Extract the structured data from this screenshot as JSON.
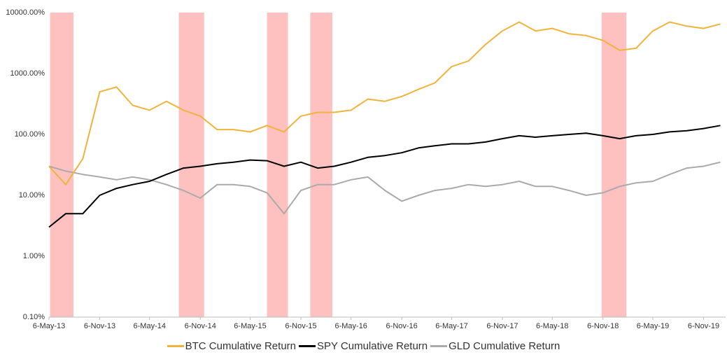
{
  "chart_data": {
    "type": "line",
    "log_scale": true,
    "x": [
      "2013-05-06",
      "2013-07-06",
      "2013-09-06",
      "2013-11-06",
      "2014-01-06",
      "2014-03-06",
      "2014-05-06",
      "2014-07-06",
      "2014-09-06",
      "2014-11-06",
      "2015-01-06",
      "2015-03-06",
      "2015-05-06",
      "2015-07-06",
      "2015-09-06",
      "2015-11-06",
      "2016-01-06",
      "2016-03-06",
      "2016-05-06",
      "2016-07-06",
      "2016-09-06",
      "2016-11-06",
      "2017-01-06",
      "2017-03-06",
      "2017-05-06",
      "2017-07-06",
      "2017-09-06",
      "2017-11-06",
      "2018-01-06",
      "2018-03-06",
      "2018-05-06",
      "2018-07-06",
      "2018-09-06",
      "2018-11-06",
      "2019-01-06",
      "2019-03-06",
      "2019-05-06",
      "2019-07-06",
      "2019-09-06",
      "2019-11-06",
      "2020-01-06"
    ],
    "series": [
      {
        "name": "BTC Cumulative Return",
        "color": "#f0b43c",
        "values": [
          30,
          15,
          40,
          500,
          600,
          300,
          250,
          350,
          250,
          200,
          120,
          120,
          110,
          140,
          110,
          200,
          230,
          230,
          250,
          380,
          350,
          420,
          550,
          700,
          1300,
          1600,
          3000,
          5000,
          7000,
          5000,
          5500,
          4500,
          4200,
          3500,
          2400,
          2600,
          5000,
          7000,
          6000,
          5500,
          6500
        ]
      },
      {
        "name": "SPY Cumulative Return",
        "color": "#000000",
        "values": [
          3,
          5,
          5,
          10,
          13,
          15,
          17,
          22,
          28,
          30,
          33,
          35,
          38,
          37,
          30,
          35,
          28,
          30,
          35,
          42,
          45,
          50,
          60,
          65,
          70,
          70,
          75,
          85,
          95,
          90,
          95,
          100,
          105,
          95,
          85,
          95,
          100,
          110,
          115,
          125,
          140
        ]
      },
      {
        "name": "GLD Cumulative Return",
        "color": "#aaaaaa",
        "values": [
          30,
          25,
          22,
          20,
          18,
          20,
          18,
          15,
          12,
          9,
          15,
          15,
          14,
          11,
          5,
          12,
          15,
          15,
          18,
          20,
          12,
          8,
          10,
          12,
          13,
          15,
          14,
          15,
          17,
          14,
          14,
          12,
          10,
          11,
          14,
          16,
          17,
          22,
          28,
          30,
          35
        ]
      }
    ],
    "shaded_periods": [
      {
        "start": "2013-05-10",
        "end": "2013-08-03",
        "color": "#ffc0c0"
      },
      {
        "start": "2014-08-20",
        "end": "2014-11-20",
        "color": "#ffc0c0"
      },
      {
        "start": "2015-07-06",
        "end": "2015-09-20",
        "color": "#ffc0c0"
      },
      {
        "start": "2015-12-10",
        "end": "2016-02-28",
        "color": "#ffc0c0"
      },
      {
        "start": "2018-11-01",
        "end": "2019-01-30",
        "color": "#ffc0c0"
      }
    ],
    "xlim": [
      "2013-05-06",
      "2020-01-25"
    ],
    "xticks": [
      {
        "value": "2013-05-06",
        "label": "6-May-13"
      },
      {
        "value": "2013-11-06",
        "label": "6-Nov-13"
      },
      {
        "value": "2014-05-06",
        "label": "6-May-14"
      },
      {
        "value": "2014-11-06",
        "label": "6-Nov-14"
      },
      {
        "value": "2015-05-06",
        "label": "6-May-15"
      },
      {
        "value": "2015-11-06",
        "label": "6-Nov-15"
      },
      {
        "value": "2016-05-06",
        "label": "6-May-16"
      },
      {
        "value": "2016-11-06",
        "label": "6-Nov-16"
      },
      {
        "value": "2017-05-06",
        "label": "6-May-17"
      },
      {
        "value": "2017-11-06",
        "label": "6-Nov-17"
      },
      {
        "value": "2018-05-06",
        "label": "6-May-18"
      },
      {
        "value": "2018-11-06",
        "label": "6-Nov-18"
      },
      {
        "value": "2019-05-06",
        "label": "6-May-19"
      },
      {
        "value": "2019-11-06",
        "label": "6-Nov-19"
      }
    ],
    "ylim": [
      0.1,
      10000
    ],
    "yticks": [
      {
        "value": 0.1,
        "label": "0.10%"
      },
      {
        "value": 1,
        "label": "1.00%"
      },
      {
        "value": 10,
        "label": "10.00%"
      },
      {
        "value": 100,
        "label": "100.00%"
      },
      {
        "value": 1000,
        "label": "1000.00%"
      },
      {
        "value": 10000,
        "label": "10000.00%"
      }
    ],
    "legend": "bottom"
  }
}
